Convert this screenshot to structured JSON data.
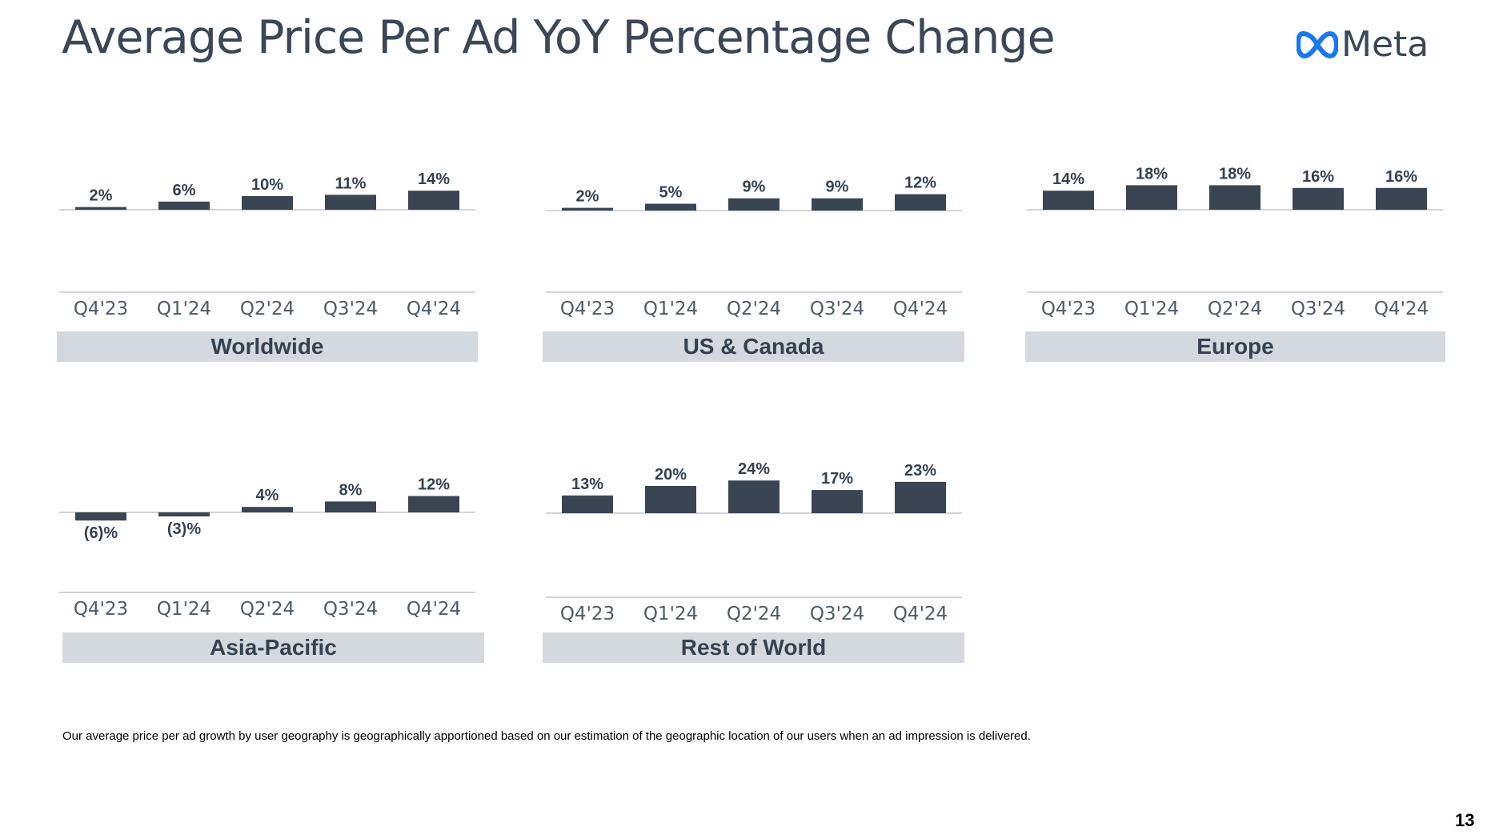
{
  "slide": {
    "title": "Average Price Per Ad YoY Percentage Change",
    "logo": {
      "text": "Meta",
      "icon": "meta-infinity-logo",
      "color": "#1877F2"
    },
    "footnote": "Our average price per ad growth by user geography is geographically apportioned based on our estimation of the geographic location of our users when an ad impression is delivered.",
    "page_number": "13"
  },
  "colors": {
    "bar": "#3a4554",
    "axis": "#c6c6c6",
    "region_band": "#d4d9e0",
    "text": "#344150"
  },
  "chart_data": [
    {
      "type": "bar",
      "title": "Worldwide",
      "categories": [
        "Q4'23",
        "Q1'24",
        "Q2'24",
        "Q3'24",
        "Q4'24"
      ],
      "values": [
        2,
        6,
        10,
        11,
        14
      ],
      "data_labels": [
        "2%",
        "6%",
        "10%",
        "11%",
        "14%"
      ],
      "grid": false
    },
    {
      "type": "bar",
      "title": "US & Canada",
      "categories": [
        "Q4'23",
        "Q1'24",
        "Q2'24",
        "Q3'24",
        "Q4'24"
      ],
      "values": [
        2,
        5,
        9,
        9,
        12
      ],
      "data_labels": [
        "2%",
        "5%",
        "9%",
        "9%",
        "12%"
      ],
      "grid": false
    },
    {
      "type": "bar",
      "title": "Europe",
      "categories": [
        "Q4'23",
        "Q1'24",
        "Q2'24",
        "Q3'24",
        "Q4'24"
      ],
      "values": [
        14,
        18,
        18,
        16,
        16
      ],
      "data_labels": [
        "14%",
        "18%",
        "18%",
        "16%",
        "16%"
      ],
      "grid": false
    },
    {
      "type": "bar",
      "title": "Asia-Pacific",
      "categories": [
        "Q4'23",
        "Q1'24",
        "Q2'24",
        "Q3'24",
        "Q4'24"
      ],
      "values": [
        -6,
        -3,
        4,
        8,
        12
      ],
      "data_labels": [
        "(6)%",
        "(3)%",
        "4%",
        "8%",
        "12%"
      ],
      "grid": false
    },
    {
      "type": "bar",
      "title": "Rest of World",
      "categories": [
        "Q4'23",
        "Q1'24",
        "Q2'24",
        "Q3'24",
        "Q4'24"
      ],
      "values": [
        13,
        20,
        24,
        17,
        23
      ],
      "data_labels": [
        "13%",
        "20%",
        "24%",
        "17%",
        "23%"
      ],
      "grid": false
    }
  ]
}
